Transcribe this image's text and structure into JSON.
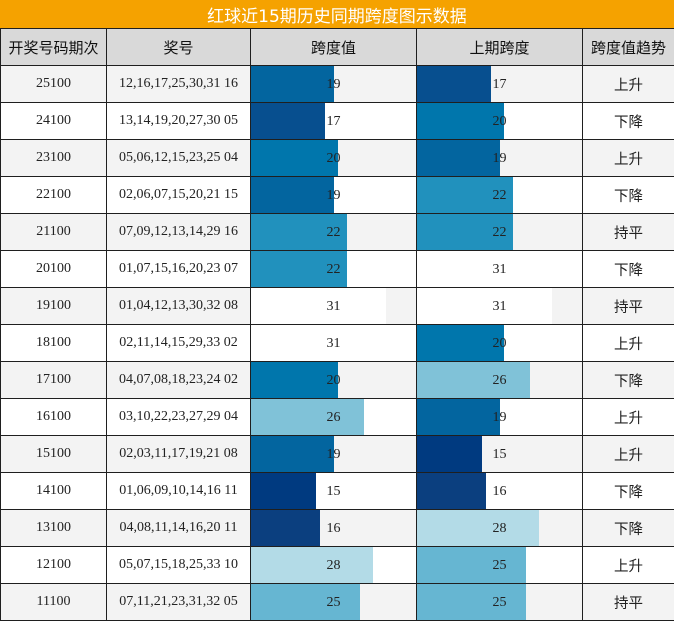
{
  "title": "红球近15期历史同期跨度图示数据",
  "headers": [
    "开奖号码期次",
    "奖号",
    "跨度值",
    "上期跨度",
    "跨度值趋势"
  ],
  "bar_max": 38,
  "colors": {
    "title_bg": "#f5a200",
    "header_bg": "#d9d9d9",
    "15": "#003a80",
    "16": "#0b3f7f",
    "17": "#074f8f",
    "19": "#03659f",
    "20": "#0076ac",
    "22": "#2191bd",
    "25": "#66b6d2",
    "26": "#80c2d8",
    "28": "#b3dbe7",
    "31": "#ffffff"
  },
  "chart_data": {
    "type": "table",
    "title": "红球近15期历史同期跨度图示数据",
    "columns": [
      "开奖号码期次",
      "奖号",
      "跨度值",
      "上期跨度",
      "跨度值趋势"
    ],
    "rows": [
      {
        "period": "25100",
        "numbers": "12,16,17,25,30,31 16",
        "span": 19,
        "prev_span": 17,
        "trend": "上升"
      },
      {
        "period": "24100",
        "numbers": "13,14,19,20,27,30 05",
        "span": 17,
        "prev_span": 20,
        "trend": "下降"
      },
      {
        "period": "23100",
        "numbers": "05,06,12,15,23,25 04",
        "span": 20,
        "prev_span": 19,
        "trend": "上升"
      },
      {
        "period": "22100",
        "numbers": "02,06,07,15,20,21 15",
        "span": 19,
        "prev_span": 22,
        "trend": "下降"
      },
      {
        "period": "21100",
        "numbers": "07,09,12,13,14,29 16",
        "span": 22,
        "prev_span": 22,
        "trend": "持平"
      },
      {
        "period": "20100",
        "numbers": "01,07,15,16,20,23 07",
        "span": 22,
        "prev_span": 31,
        "trend": "下降"
      },
      {
        "period": "19100",
        "numbers": "01,04,12,13,30,32 08",
        "span": 31,
        "prev_span": 31,
        "trend": "持平"
      },
      {
        "period": "18100",
        "numbers": "02,11,14,15,29,33 02",
        "span": 31,
        "prev_span": 20,
        "trend": "上升"
      },
      {
        "period": "17100",
        "numbers": "04,07,08,18,23,24 02",
        "span": 20,
        "prev_span": 26,
        "trend": "下降"
      },
      {
        "period": "16100",
        "numbers": "03,10,22,23,27,29 04",
        "span": 26,
        "prev_span": 19,
        "trend": "上升"
      },
      {
        "period": "15100",
        "numbers": "02,03,11,17,19,21 08",
        "span": 19,
        "prev_span": 15,
        "trend": "上升"
      },
      {
        "period": "14100",
        "numbers": "01,06,09,10,14,16 11",
        "span": 15,
        "prev_span": 16,
        "trend": "下降"
      },
      {
        "period": "13100",
        "numbers": "04,08,11,14,16,20 11",
        "span": 16,
        "prev_span": 28,
        "trend": "下降"
      },
      {
        "period": "12100",
        "numbers": "05,07,15,18,25,33 10",
        "span": 28,
        "prev_span": 25,
        "trend": "上升"
      },
      {
        "period": "11100",
        "numbers": "07,11,21,23,31,32 05",
        "span": 25,
        "prev_span": 25,
        "trend": "持平"
      }
    ]
  }
}
